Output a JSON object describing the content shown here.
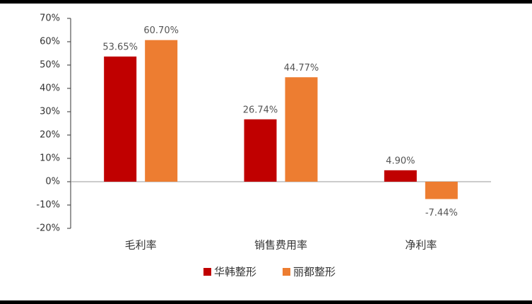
{
  "chart_data": {
    "type": "bar",
    "categories": [
      "毛利率",
      "销售费用率",
      "净利率"
    ],
    "series": [
      {
        "name": "华韩整形",
        "color": "#c00000",
        "values": [
          53.65,
          26.74,
          4.9
        ],
        "value_labels": [
          "53.65%",
          "26.74%",
          "4.90%"
        ]
      },
      {
        "name": "丽都整形",
        "color": "#ed7d31",
        "values": [
          60.7,
          44.77,
          -7.44
        ],
        "value_labels": [
          "60.70%",
          "44.77%",
          "-7.44%"
        ]
      }
    ],
    "ylim": [
      -20,
      70
    ],
    "yticks": [
      {
        "value": -20,
        "label": "-20%"
      },
      {
        "value": -10,
        "label": "-10%"
      },
      {
        "value": 0,
        "label": "0%"
      },
      {
        "value": 10,
        "label": "10%"
      },
      {
        "value": 20,
        "label": "20%"
      },
      {
        "value": 30,
        "label": "30%"
      },
      {
        "value": 40,
        "label": "40%"
      },
      {
        "value": 50,
        "label": "50%"
      },
      {
        "value": 60,
        "label": "60%"
      },
      {
        "value": 70,
        "label": "70%"
      }
    ],
    "legend": "bottom"
  }
}
